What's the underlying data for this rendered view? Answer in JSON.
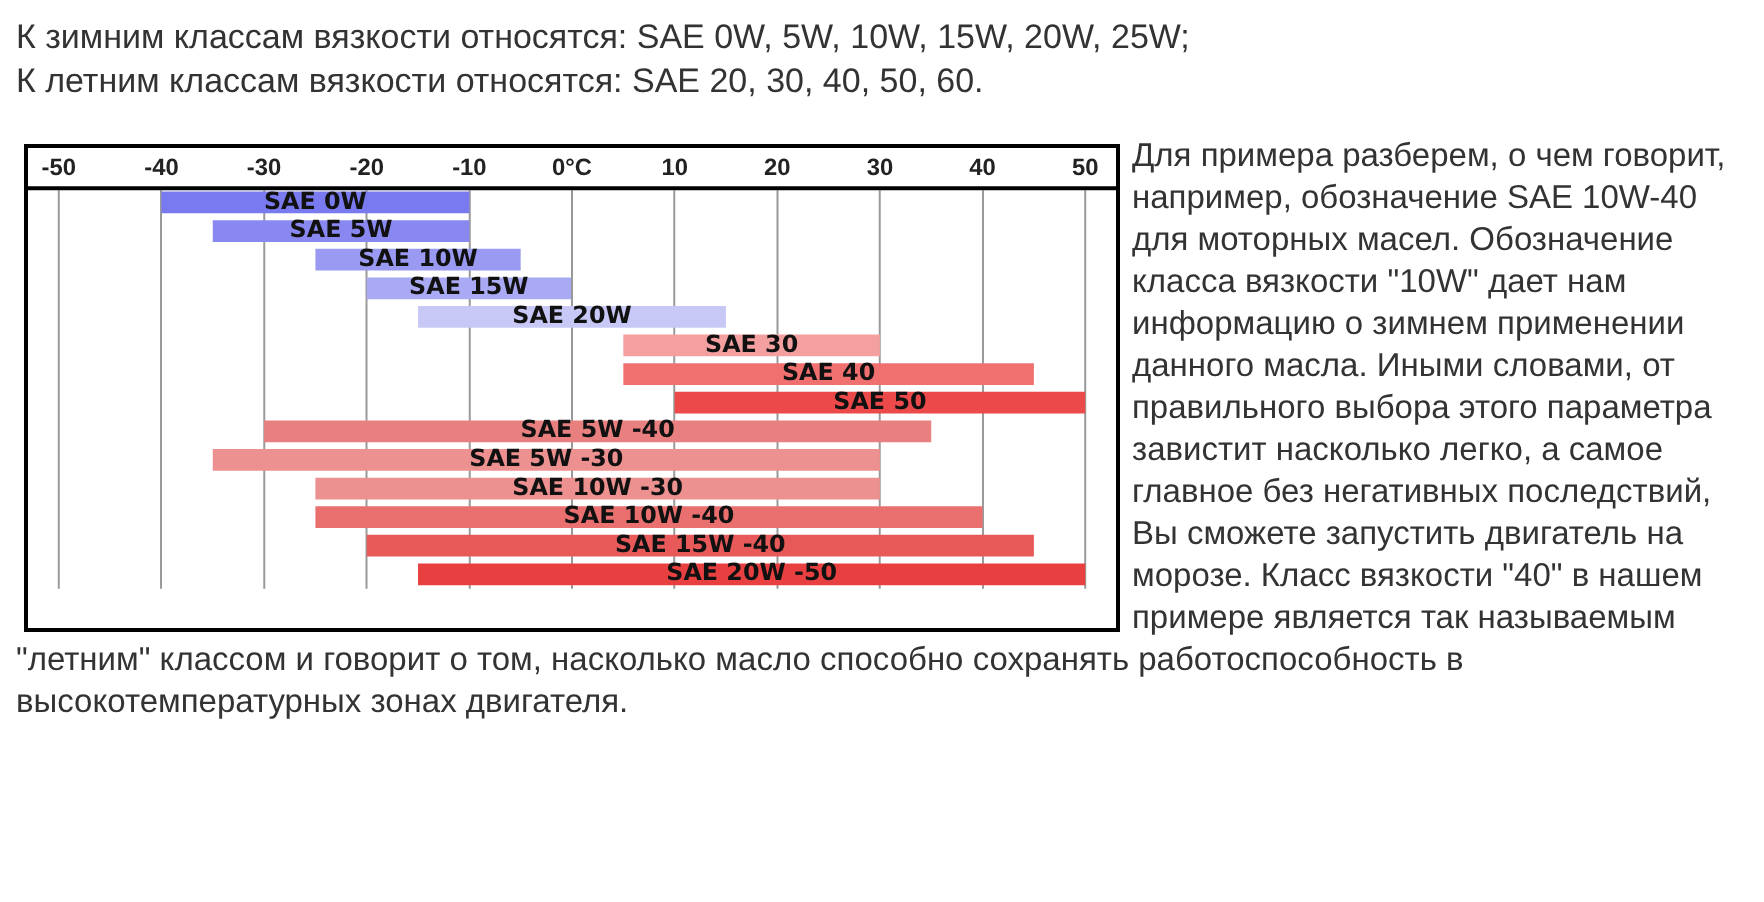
{
  "chart_data": {
    "type": "bar",
    "orientation": "horizontal",
    "title": "К зимним классам вязкости относятся: SAE 0W, 5W, 10W, 15W, 20W, 25W;",
    "subtitle": "К летним классам вязкости относятся: SAE 20, 30, 40, 50, 60.",
    "categories": [
      "SAE 0W",
      "SAE 5W",
      "SAE 10W",
      "SAE 15W",
      "SAE 20W",
      "SAE 30",
      "SAE 40",
      "SAE 50",
      "SAE 5W -40",
      "SAE 5W -30",
      "SAE 10W -30",
      "SAE 10W -40",
      "SAE 15W -40",
      "SAE 20W -50"
    ],
    "base": [
      -40,
      -35,
      -25,
      -20,
      -15,
      5,
      5,
      10,
      -30,
      -35,
      -25,
      -25,
      -20,
      -15
    ],
    "values": [
      30,
      25,
      20,
      20,
      30,
      25,
      40,
      40,
      65,
      65,
      55,
      65,
      65,
      65
    ],
    "colors": [
      "#7a7af0",
      "#8888f0",
      "#9a9af2",
      "#aaaaf4",
      "#c8c8f6",
      "#f4a0a0",
      "#f07070",
      "#ec4a4a",
      "#e88080",
      "#ec9090",
      "#ec9090",
      "#ea7070",
      "#e85a5a",
      "#e84040"
    ],
    "xlim": [
      -53,
      53
    ],
    "xticks": [
      -50,
      -40,
      -30,
      -20,
      -10,
      {
        "value": 0,
        "label": "0°C"
      },
      10,
      20,
      30,
      40,
      50
    ],
    "grid": "x",
    "legend": false,
    "annotations": [
      "Для примера разберем, о чем говорит, например, обозначение SAE 10W-40 для моторных масел. Обозначение класса вязкости \"10W\" дает нам информацию о зимнем применении данного масла. Иными словами, от правильного выбора этого параметра завистит насколько легко, а самое главное без негативных последствий, Вы сможете запустить двигатель на морозе. Класс вязкости \"40\" в нашем примере является так называемым \"летним\" классом и говорит о том, насколько масло способно сохранять работоспособность в высокотемпературных зонах двигателя."
    ]
  }
}
